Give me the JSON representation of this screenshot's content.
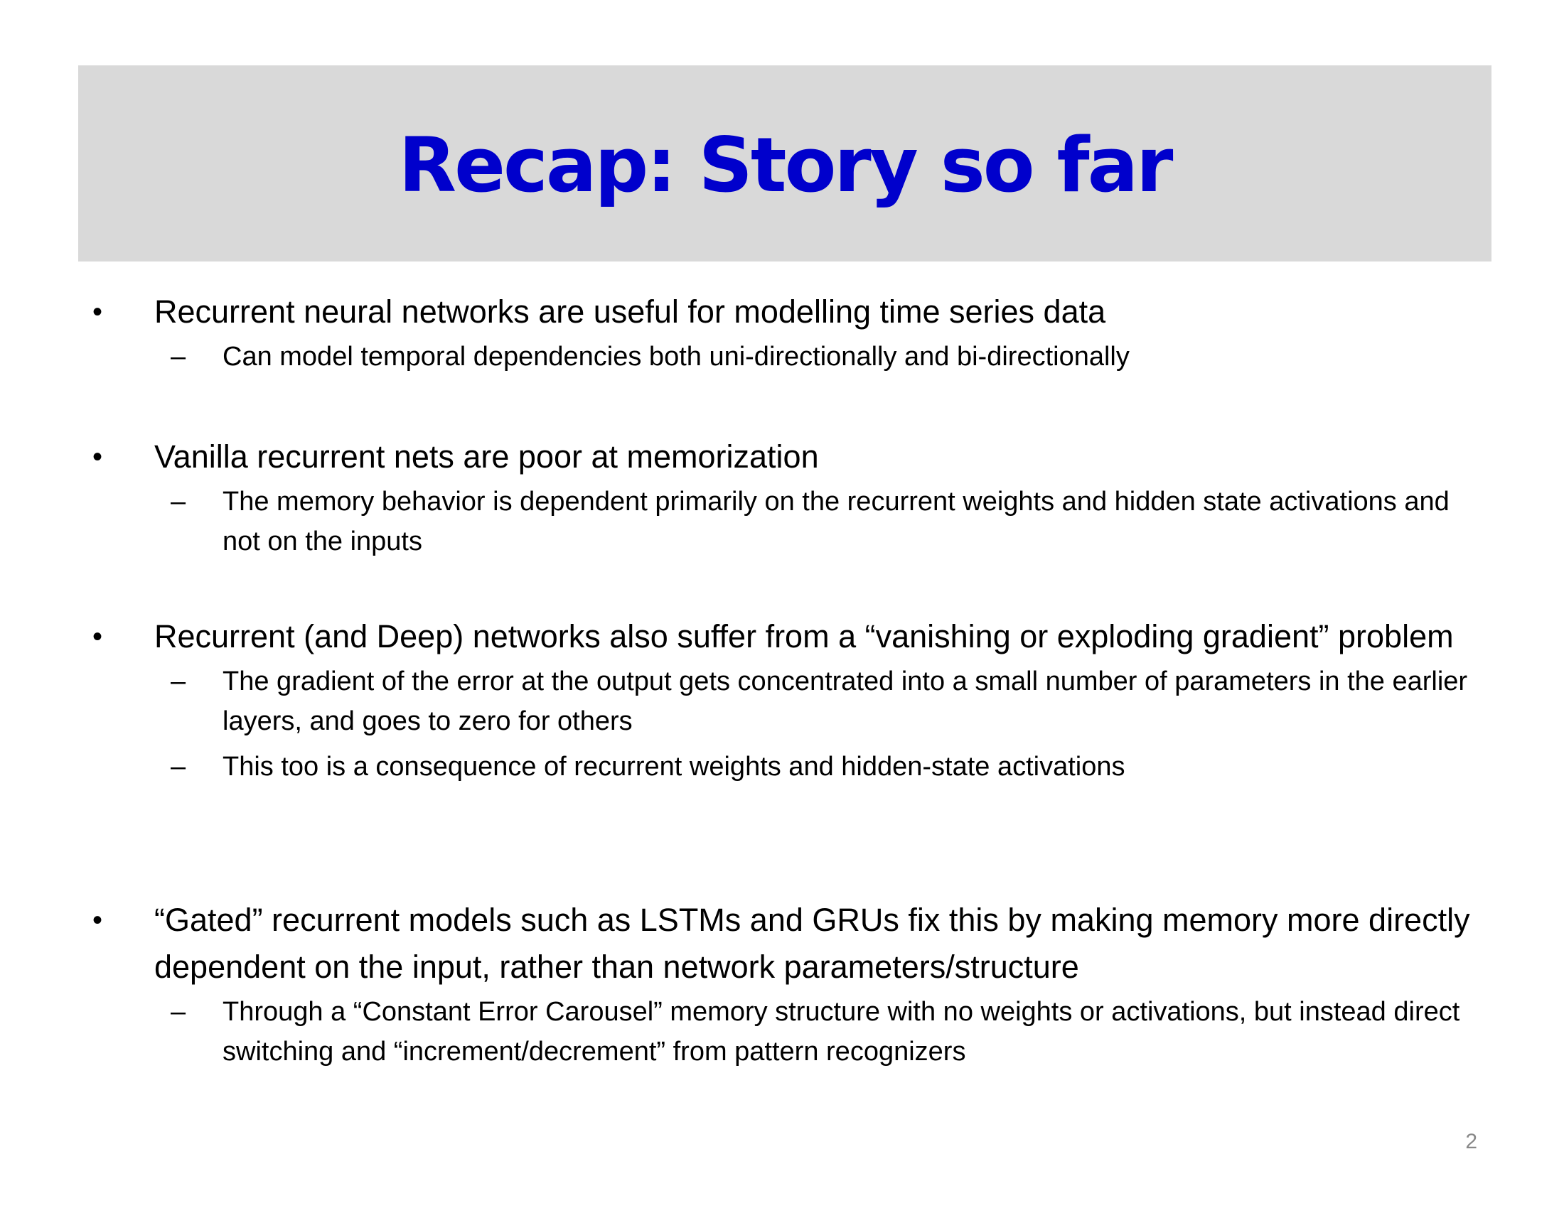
{
  "slide": {
    "title": "Recap: Story so far",
    "page_number": "2",
    "bullet_symbol": "•",
    "sub_bullet_symbol": "–",
    "title_color": "#0000cc",
    "title_bar_color": "#d9d9d9",
    "bullets": [
      {
        "text": "Recurrent neural networks are useful for modelling time series data",
        "sub": [
          "Can model temporal dependencies both uni-directionally and bi-directionally"
        ]
      },
      {
        "text": "Vanilla recurrent nets are poor at memorization",
        "sub": [
          "The memory behavior is dependent primarily on the recurrent weights and hidden state activations and not on the inputs"
        ]
      },
      {
        "text": "Recurrent (and Deep) networks also suffer from a “vanishing or exploding gradient” problem",
        "sub": [
          "The gradient of the error at the output gets concentrated into a small number of parameters in the earlier layers, and goes to zero for others",
          "This too is a consequence of recurrent weights and hidden-state activations"
        ]
      },
      {
        "text": "“Gated” recurrent models such as LSTMs and GRUs fix this by making memory more directly dependent on the input, rather than network parameters/structure",
        "sub": [
          "Through a “Constant Error Carousel” memory structure with no weights or activations, but instead direct switching and  “increment/decrement” from pattern recognizers"
        ]
      }
    ]
  }
}
